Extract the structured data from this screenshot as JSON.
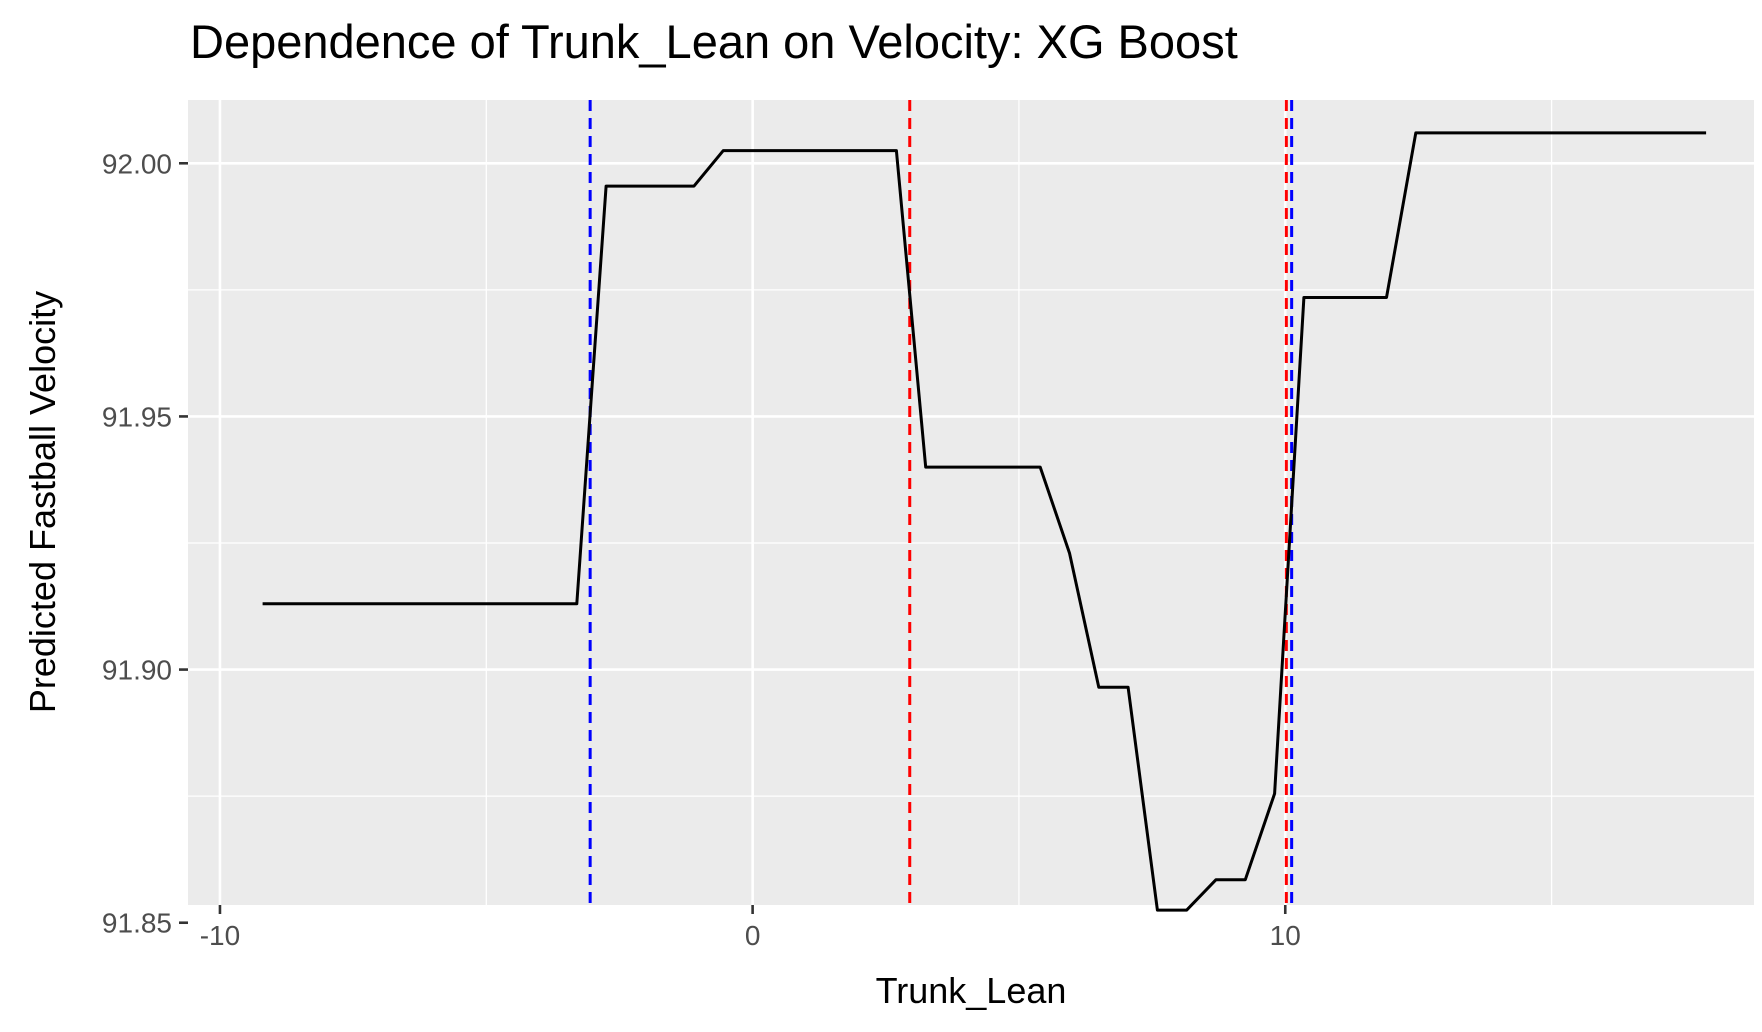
{
  "chart_data": {
    "type": "line",
    "title": "Dependence of Trunk_Lean on Velocity: XG Boost",
    "xlabel": "Trunk_Lean",
    "ylabel": "Predicted Fastball Velocity",
    "xlim": [
      -10.6,
      18.8
    ],
    "ylim": [
      91.8535,
      92.0125
    ],
    "x_ticks": [
      -10,
      0,
      10
    ],
    "x_tick_labels": [
      "-10",
      "0",
      "10"
    ],
    "y_ticks": [
      91.85,
      91.9,
      91.95,
      92.0
    ],
    "y_tick_labels": [
      "91.85",
      "91.90",
      "91.95",
      "92.00"
    ],
    "grid": true,
    "legend": "none",
    "series": [
      {
        "color": "#000000",
        "x": [
          -9.2,
          -3.3,
          -2.75,
          -1.1,
          -0.55,
          2.7,
          3.25,
          5.4,
          5.95,
          6.5,
          7.05,
          7.6,
          8.15,
          8.7,
          9.25,
          9.8,
          10.35,
          11.9,
          12.45,
          17.9
        ],
        "y": [
          91.913,
          91.913,
          91.9955,
          91.9955,
          92.0025,
          92.0025,
          91.94,
          91.94,
          91.923,
          91.8965,
          91.8965,
          91.8525,
          91.8525,
          91.8585,
          91.8585,
          91.8755,
          91.9735,
          91.9735,
          92.006,
          92.006
        ]
      }
    ],
    "vlines": [
      {
        "x": -3.05,
        "color": "#0000ff",
        "style": "dashed"
      },
      {
        "x": 2.95,
        "color": "#ff0000",
        "style": "dashed"
      },
      {
        "x": 10.02,
        "color": "#ff0000",
        "style": "dashed"
      },
      {
        "x": 10.12,
        "color": "#0000ff",
        "style": "dashed"
      }
    ],
    "panel_background": "#ebebeb",
    "grid_color": "#ffffff"
  }
}
